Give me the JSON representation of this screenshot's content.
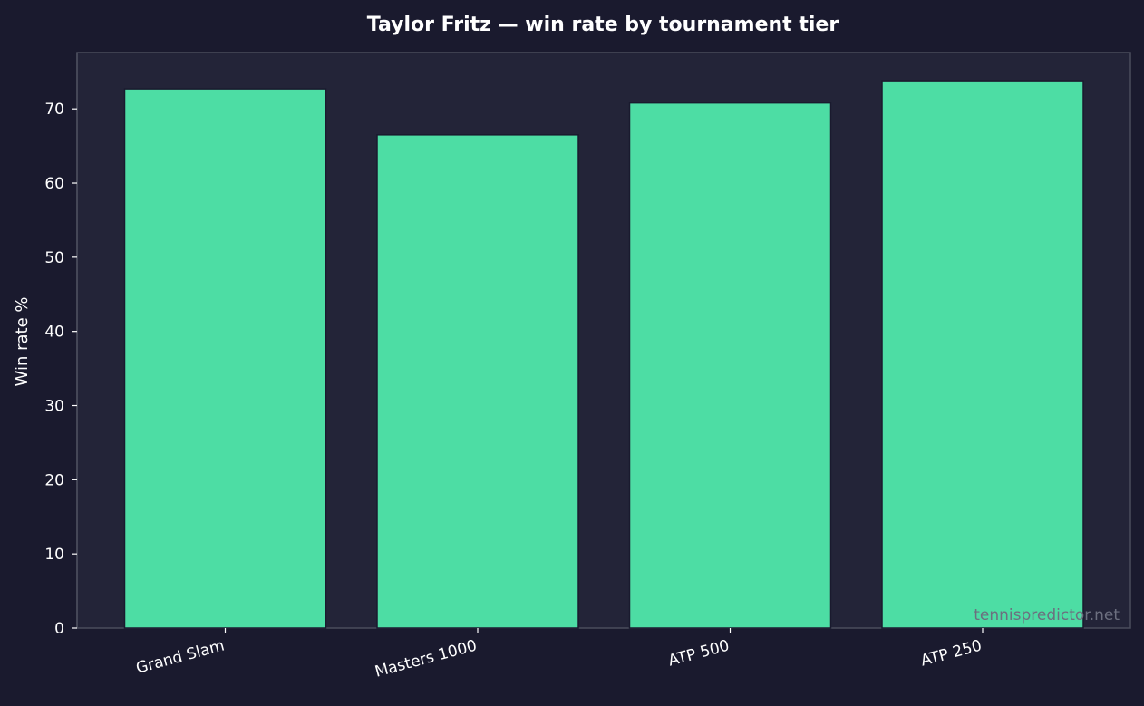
{
  "chart_data": {
    "type": "bar",
    "title": "Taylor Fritz — win rate by tournament tier",
    "xlabel": "",
    "ylabel": "Win rate %",
    "categories": [
      "Grand Slam",
      "Masters 1000",
      "ATP 500",
      "ATP 250"
    ],
    "values": [
      72.7,
      66.5,
      70.8,
      73.8
    ],
    "ylim": [
      0,
      77.6
    ],
    "yticks": [
      "0",
      "10",
      "20",
      "30",
      "40",
      "50",
      "60",
      "70"
    ],
    "grid": false,
    "legend": "none",
    "bar_color": "#4ddda4",
    "bar_edge_color": "#1a1a2e",
    "background_color": "#1a1a2e",
    "plot_background_color": "#232438"
  },
  "watermark": "tennispredictor.net"
}
